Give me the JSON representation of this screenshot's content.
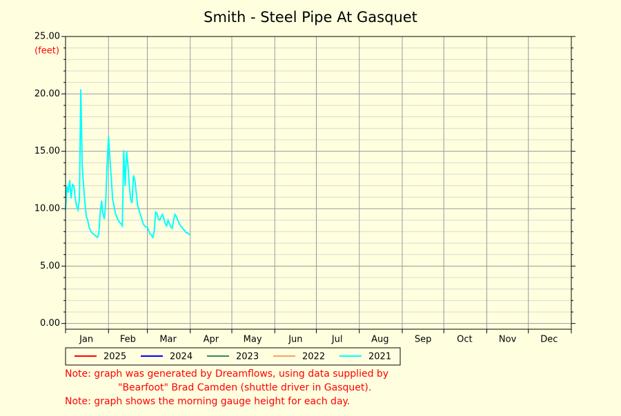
{
  "chart_data": {
    "type": "line",
    "title": "Smith - Steel Pipe At Gasquet",
    "y_label": "(feet)",
    "xlim": [
      1,
      366
    ],
    "ylim": [
      -0.5,
      25
    ],
    "yticks": [
      {
        "value": 0,
        "label": "0.00"
      },
      {
        "value": 5,
        "label": "5.00"
      },
      {
        "value": 10,
        "label": "10.00"
      },
      {
        "value": 15,
        "label": "15.00"
      },
      {
        "value": 20,
        "label": "20.00"
      },
      {
        "value": 25,
        "label": "25.00"
      }
    ],
    "yminor_ticks": [
      1,
      2,
      3,
      4,
      6,
      7,
      8,
      9,
      11,
      12,
      13,
      14,
      16,
      17,
      18,
      19,
      21,
      22,
      23,
      24
    ],
    "xgrid": [
      1,
      32,
      60,
      91,
      121,
      152,
      182,
      213,
      244,
      274,
      305,
      335,
      366
    ],
    "xticks": [
      {
        "value": 16,
        "label": "Jan"
      },
      {
        "value": 46,
        "label": "Feb"
      },
      {
        "value": 75,
        "label": "Mar"
      },
      {
        "value": 106,
        "label": "Apr"
      },
      {
        "value": 136,
        "label": "May"
      },
      {
        "value": 167,
        "label": "Jun"
      },
      {
        "value": 197,
        "label": "Jul"
      },
      {
        "value": 228,
        "label": "Aug"
      },
      {
        "value": 259,
        "label": "Sep"
      },
      {
        "value": 289,
        "label": "Oct"
      },
      {
        "value": 320,
        "label": "Nov"
      },
      {
        "value": 350,
        "label": "Dec"
      }
    ],
    "grid": true,
    "x": [
      1,
      2,
      3,
      4,
      5,
      6,
      7,
      8,
      9,
      10,
      11,
      12,
      13,
      14,
      15,
      16,
      17,
      18,
      19,
      20,
      21,
      22,
      23,
      24,
      25,
      26,
      27,
      28,
      29,
      30,
      31,
      32,
      33,
      34,
      35,
      36,
      37,
      38,
      39,
      40,
      41,
      42,
      43,
      44,
      45,
      46,
      47,
      48,
      49,
      50,
      51,
      52,
      53,
      54,
      55,
      56,
      57,
      58,
      59,
      60,
      61,
      62,
      63,
      64,
      65,
      66,
      67,
      68,
      69,
      70,
      71,
      72,
      73,
      74,
      75,
      76,
      77,
      78,
      79,
      80,
      81,
      82,
      83,
      84,
      85,
      86,
      87,
      88,
      89,
      90,
      91
    ],
    "series": [
      {
        "name": "2025",
        "color": "#ff0000"
      },
      {
        "name": "2024",
        "color": "#0000ff"
      },
      {
        "name": "2023",
        "color": "#2e8b57"
      },
      {
        "name": "2022",
        "color": "#f4a460"
      },
      {
        "name": "2021",
        "color": "#00ffff",
        "values": [
          9.9,
          12.0,
          11.4,
          12.5,
          10.9,
          12.1,
          12.0,
          10.9,
          10.2,
          9.9,
          10.8,
          20.4,
          13.8,
          12.0,
          10.5,
          9.3,
          9.0,
          8.4,
          8.1,
          7.9,
          7.8,
          7.7,
          7.6,
          7.5,
          7.8,
          9.6,
          10.7,
          9.6,
          9.1,
          10.5,
          13.8,
          16.3,
          14.4,
          12.6,
          10.8,
          10.2,
          9.6,
          9.3,
          9.0,
          8.8,
          8.7,
          8.5,
          15.1,
          12.0,
          15.0,
          13.8,
          12.0,
          10.8,
          10.5,
          12.9,
          12.5,
          11.4,
          10.3,
          9.9,
          9.5,
          9.1,
          8.7,
          8.5,
          8.4,
          8.4,
          8.1,
          7.8,
          7.7,
          7.5,
          8.0,
          9.7,
          9.6,
          9.1,
          9.0,
          9.3,
          9.5,
          9.1,
          8.7,
          8.5,
          9.0,
          8.7,
          8.4,
          8.3,
          9.0,
          9.5,
          9.3,
          9.0,
          8.7,
          8.5,
          8.4,
          8.2,
          8.1,
          7.9,
          7.9,
          7.8,
          7.7
        ]
      }
    ],
    "notes": [
      "Note: graph was generated by Dreamflows, using data supplied by",
      "\"Bearfoot\" Brad Camden (shuttle driver in Gasquet).",
      "Note: graph shows the morning gauge height for each day."
    ]
  }
}
